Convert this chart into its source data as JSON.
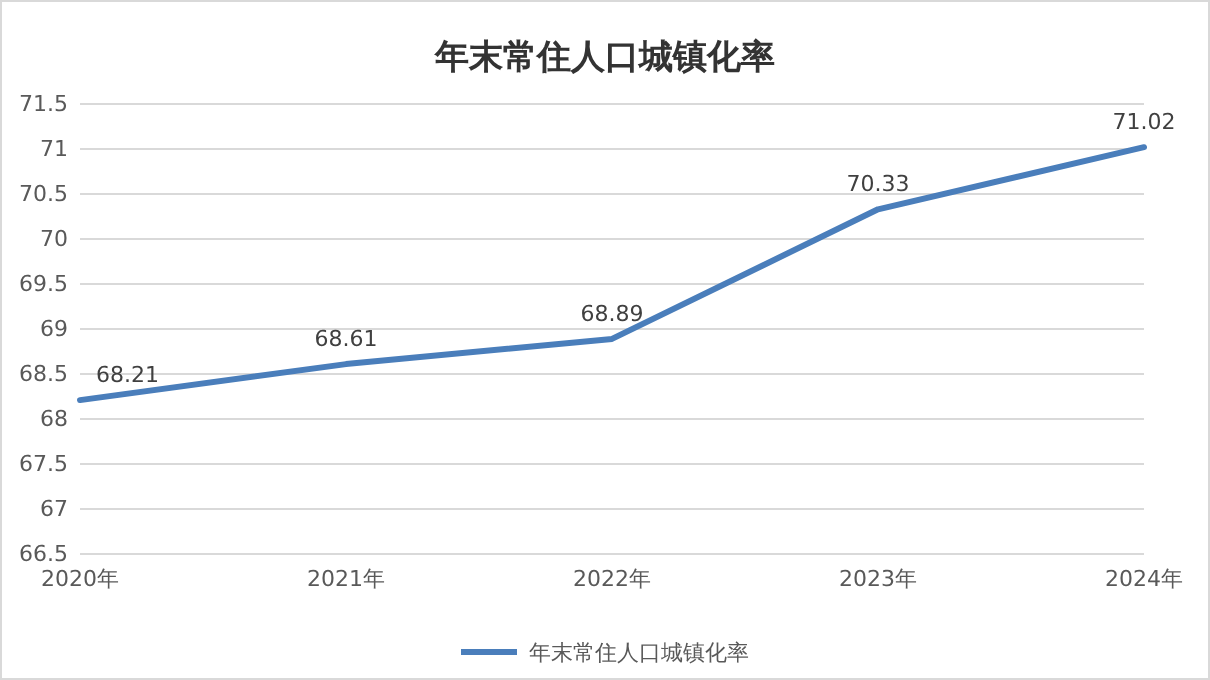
{
  "chart_data": {
    "type": "line",
    "title": "年末常住人口城镇化率",
    "categories": [
      "2020年",
      "2021年",
      "2022年",
      "2023年",
      "2024年"
    ],
    "series": [
      {
        "name": "年末常住人口城镇化率",
        "color": "#4a7ebb",
        "values": [
          68.21,
          68.61,
          68.89,
          70.33,
          71.02
        ]
      }
    ],
    "ylim": [
      66.5,
      71.5
    ],
    "yticks": [
      66.5,
      67,
      67.5,
      68,
      68.5,
      69,
      69.5,
      70,
      70.5,
      71,
      71.5
    ],
    "grid": "y",
    "legend": "bottom",
    "data_labels": true,
    "marker": "none",
    "line_style": "solid"
  }
}
